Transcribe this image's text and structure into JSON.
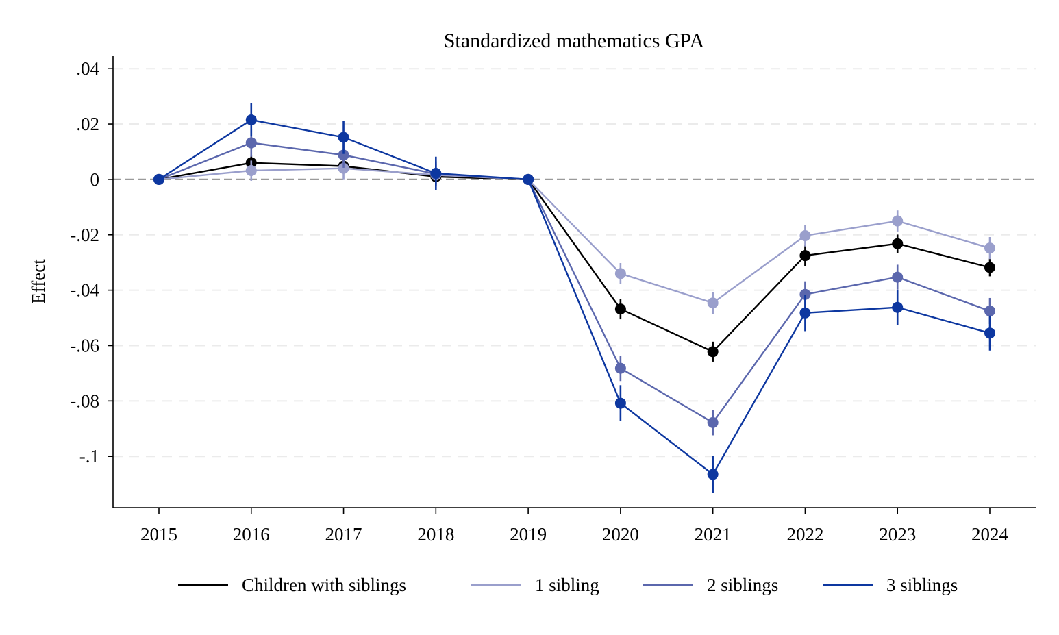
{
  "chart_data": {
    "type": "line",
    "title": "Standardized mathematics GPA",
    "xlabel": "",
    "ylabel": "Effect",
    "x": [
      2015,
      2016,
      2017,
      2018,
      2019,
      2020,
      2021,
      2022,
      2023,
      2024
    ],
    "x_tick_labels": [
      "2015",
      "2016",
      "2017",
      "2018",
      "2019",
      "2020",
      "2021",
      "2022",
      "2023",
      "2024"
    ],
    "y_ticks": [
      0.04,
      0.02,
      0,
      -0.02,
      -0.04,
      -0.06,
      -0.08,
      -0.1
    ],
    "y_tick_labels": [
      ".04",
      ".02",
      "0",
      "-.02",
      "-.04",
      "-.06",
      "-.08",
      "-.1"
    ],
    "ylim": [
      -0.1185,
      0.0445
    ],
    "xlim": [
      2014.5,
      2024.5
    ],
    "grid": "horizontal-dashed",
    "reference_line": 0,
    "legend_position": "bottom",
    "series": [
      {
        "name": "Children with siblings",
        "color": "#000000",
        "values": [
          0,
          0.006,
          0.0048,
          0.001,
          0,
          -0.0468,
          -0.0622,
          -0.0275,
          -0.0232,
          -0.0318
        ],
        "ci_low": [
          0,
          0.0035,
          0.0022,
          -0.0018,
          0,
          -0.0505,
          -0.0658,
          -0.0312,
          -0.0265,
          -0.035
        ],
        "ci_high": [
          0,
          0.0088,
          0.0074,
          0.0038,
          0,
          -0.0431,
          -0.0586,
          -0.0238,
          -0.0199,
          -0.0286
        ]
      },
      {
        "name": "1 sibling",
        "color": "#9a9fcc",
        "values": [
          0,
          0.0032,
          0.004,
          0.0016,
          0,
          -0.034,
          -0.0446,
          -0.0203,
          -0.015,
          -0.0248
        ],
        "ci_low": [
          0,
          -0.0005,
          -0.0002,
          -0.0022,
          0,
          -0.0378,
          -0.0485,
          -0.0242,
          -0.0188,
          -0.0288
        ],
        "ci_high": [
          0,
          0.0068,
          0.0082,
          0.0054,
          0,
          -0.0302,
          -0.0407,
          -0.0164,
          -0.0112,
          -0.0208
        ]
      },
      {
        "name": "2 siblings",
        "color": "#5b67ad",
        "values": [
          0,
          0.0132,
          0.0088,
          0.002,
          0,
          -0.0682,
          -0.0878,
          -0.0415,
          -0.0353,
          -0.0475
        ],
        "ci_low": [
          0,
          0.0082,
          0.0042,
          -0.0025,
          0,
          -0.0728,
          -0.0924,
          -0.0462,
          -0.0398,
          -0.0522
        ],
        "ci_high": [
          0,
          0.0182,
          0.0134,
          0.0065,
          0,
          -0.0636,
          -0.0832,
          -0.0368,
          -0.0308,
          -0.0428
        ]
      },
      {
        "name": "3 siblings",
        "color": "#0d37a0",
        "values": [
          0,
          0.0215,
          0.0152,
          0.0022,
          0,
          -0.0808,
          -0.1065,
          -0.0482,
          -0.0462,
          -0.0555
        ],
        "ci_low": [
          0,
          0.0155,
          0.0092,
          -0.0038,
          0,
          -0.0873,
          -0.1132,
          -0.0548,
          -0.0525,
          -0.0618
        ],
        "ci_high": [
          0,
          0.0275,
          0.0212,
          0.0082,
          0,
          -0.0743,
          -0.0998,
          -0.0416,
          -0.0399,
          -0.0492
        ]
      }
    ]
  }
}
